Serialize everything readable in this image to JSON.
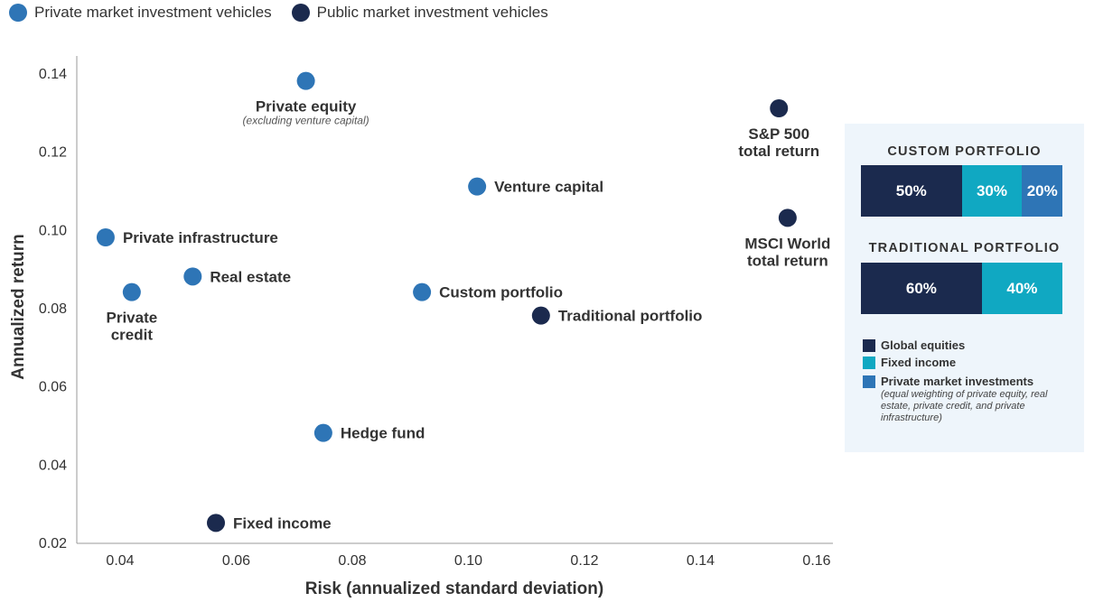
{
  "legend": {
    "private_label": "Private market investment vehicles",
    "public_label": "Public market investment vehicles"
  },
  "colors": {
    "private": "#2e75b6",
    "public": "#1b2a4e",
    "global_equities": "#1b2a4e",
    "fixed_income": "#10a8c2",
    "private_market": "#2e75b6",
    "panel_bg": "#eef5fb"
  },
  "chart_data": {
    "type": "scatter",
    "xlabel": "Risk (annualized standard deviation)",
    "ylabel": "Annualized return",
    "xlim": [
      0.033,
      0.162
    ],
    "ylim": [
      0.02,
      0.145
    ],
    "xticks": [
      "0.04",
      "0.06",
      "0.08",
      "0.10",
      "0.12",
      "0.14",
      "0.16"
    ],
    "yticks": [
      "0.14",
      "0.12",
      "0.10",
      "0.08",
      "0.06",
      "0.04",
      "0.02"
    ],
    "grid": false,
    "legend_position": "top-left",
    "series": [
      {
        "name": "Private market investment vehicles",
        "points": [
          {
            "x": 0.072,
            "y": 0.138,
            "label": "Private equity",
            "sublabel": "(excluding venture capital)",
            "label_pos": "below"
          },
          {
            "x": 0.1015,
            "y": 0.111,
            "label": "Venture capital",
            "label_pos": "right"
          },
          {
            "x": 0.0375,
            "y": 0.098,
            "label": "Private infrastructure",
            "label_pos": "right"
          },
          {
            "x": 0.0525,
            "y": 0.088,
            "label": "Real estate",
            "label_pos": "right"
          },
          {
            "x": 0.042,
            "y": 0.084,
            "label": "Private credit",
            "label_pos": "below"
          },
          {
            "x": 0.092,
            "y": 0.084,
            "label": "Custom portfolio",
            "label_pos": "right"
          },
          {
            "x": 0.075,
            "y": 0.048,
            "label": "Hedge fund",
            "label_pos": "right"
          }
        ]
      },
      {
        "name": "Public market investment vehicles",
        "points": [
          {
            "x": 0.1535,
            "y": 0.131,
            "label": "S&P 500 total return",
            "label_pos": "below"
          },
          {
            "x": 0.155,
            "y": 0.103,
            "label": "MSCI World total return",
            "label_pos": "below"
          },
          {
            "x": 0.1125,
            "y": 0.078,
            "label": "Traditional portfolio",
            "label_pos": "right"
          },
          {
            "x": 0.0565,
            "y": 0.025,
            "label": "Fixed income",
            "label_pos": "right"
          }
        ]
      }
    ]
  },
  "panel": {
    "custom_title": "CUSTOM PORTFOLIO",
    "custom_segments": [
      {
        "label": "50%",
        "value": 50,
        "kind": "global_equities"
      },
      {
        "label": "30%",
        "value": 30,
        "kind": "fixed_income"
      },
      {
        "label": "20%",
        "value": 20,
        "kind": "private_market"
      }
    ],
    "traditional_title": "TRADITIONAL PORTFOLIO",
    "traditional_segments": [
      {
        "label": "60%",
        "value": 60,
        "kind": "global_equities"
      },
      {
        "label": "40%",
        "value": 40,
        "kind": "fixed_income"
      }
    ],
    "key": {
      "global_equities": "Global equities",
      "fixed_income": "Fixed income",
      "private_market": "Private market investments",
      "private_market_note": "(equal weighting of private equity, real estate, private credit, and private infrastructure)"
    }
  }
}
